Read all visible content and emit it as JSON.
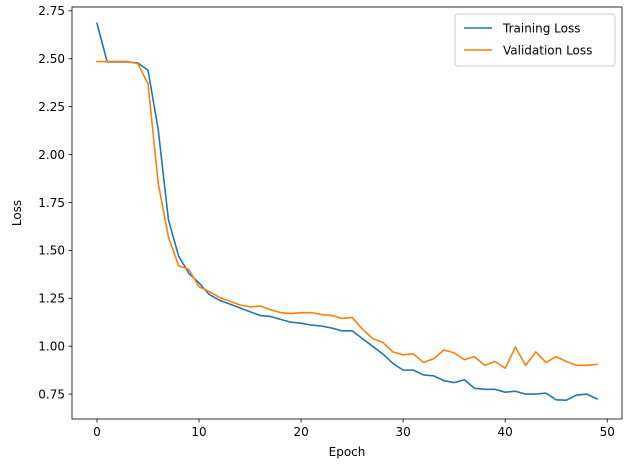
{
  "chart_data": {
    "type": "line",
    "title": "",
    "xlabel": "Epoch",
    "ylabel": "Loss",
    "xlim": [
      -2.45,
      51.45
    ],
    "ylim": [
      0.62,
      2.77
    ],
    "xticks": [
      0,
      10,
      20,
      30,
      40,
      50
    ],
    "yticks": [
      0.75,
      1.0,
      1.25,
      1.5,
      1.75,
      2.0,
      2.25,
      2.5,
      2.75
    ],
    "xtick_labels": [
      "0",
      "10",
      "20",
      "30",
      "40",
      "50"
    ],
    "ytick_labels": [
      "0.75",
      "1.00",
      "1.25",
      "1.50",
      "1.75",
      "2.00",
      "2.25",
      "2.50",
      "2.75"
    ],
    "grid": false,
    "legend_position": "top-right",
    "x": [
      0,
      1,
      2,
      3,
      4,
      5,
      6,
      7,
      8,
      9,
      10,
      11,
      12,
      13,
      14,
      15,
      16,
      17,
      18,
      19,
      20,
      21,
      22,
      23,
      24,
      25,
      26,
      27,
      28,
      29,
      30,
      31,
      32,
      33,
      34,
      35,
      36,
      37,
      38,
      39,
      40,
      41,
      42,
      43,
      44,
      45,
      46,
      47,
      48,
      49
    ],
    "series": [
      {
        "name": "Training Loss",
        "color": "#1f77b4",
        "values": [
          2.685,
          2.483,
          2.483,
          2.483,
          2.478,
          2.44,
          2.13,
          1.66,
          1.47,
          1.38,
          1.33,
          1.27,
          1.24,
          1.22,
          1.2,
          1.18,
          1.16,
          1.155,
          1.14,
          1.125,
          1.12,
          1.11,
          1.105,
          1.095,
          1.08,
          1.08,
          1.04,
          1.0,
          0.96,
          0.91,
          0.875,
          0.875,
          0.85,
          0.845,
          0.82,
          0.81,
          0.825,
          0.78,
          0.775,
          0.775,
          0.76,
          0.765,
          0.75,
          0.75,
          0.755,
          0.72,
          0.718,
          0.745,
          0.75,
          0.725
        ]
      },
      {
        "name": "Validation Loss",
        "color": "#ff7f0e",
        "values": [
          2.485,
          2.485,
          2.485,
          2.485,
          2.475,
          2.37,
          1.85,
          1.57,
          1.42,
          1.4,
          1.31,
          1.285,
          1.255,
          1.235,
          1.215,
          1.205,
          1.21,
          1.19,
          1.175,
          1.17,
          1.175,
          1.175,
          1.165,
          1.16,
          1.145,
          1.15,
          1.09,
          1.04,
          1.02,
          0.97,
          0.955,
          0.96,
          0.915,
          0.935,
          0.98,
          0.965,
          0.93,
          0.945,
          0.9,
          0.92,
          0.885,
          0.995,
          0.9,
          0.97,
          0.915,
          0.945,
          0.92,
          0.9,
          0.9,
          0.905
        ]
      }
    ]
  }
}
